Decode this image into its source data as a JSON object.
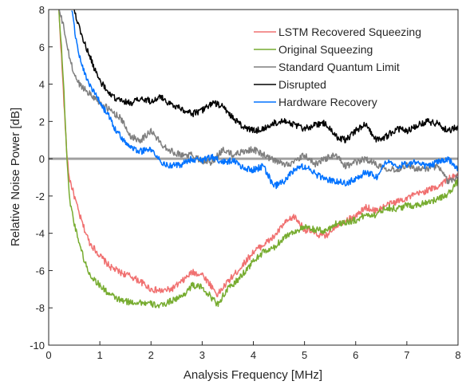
{
  "chart_data": {
    "type": "line",
    "xlabel": "Analysis Frequency [MHz]",
    "ylabel": "Relative Noise Power [dB]",
    "xlim": [
      0,
      8
    ],
    "ylim": [
      -10,
      8
    ],
    "xticks": [
      0,
      1,
      2,
      3,
      4,
      5,
      6,
      7,
      8
    ],
    "yticks": [
      -10,
      -8,
      -6,
      -4,
      -2,
      0,
      2,
      4,
      6,
      8
    ],
    "grid": false,
    "legend_position": "top-right",
    "reference_line": {
      "y": 0,
      "color": "#a0a0a0"
    },
    "series": [
      {
        "name": "LSTM Recovered Squeezing",
        "color": "#f07070",
        "x": [
          0.2,
          0.25,
          0.3,
          0.35,
          0.4,
          0.5,
          0.6,
          0.7,
          0.8,
          1.0,
          1.2,
          1.4,
          1.6,
          1.8,
          2.0,
          2.2,
          2.4,
          2.6,
          2.8,
          3.0,
          3.2,
          3.3,
          3.5,
          3.7,
          4.0,
          4.2,
          4.4,
          4.6,
          4.8,
          5.0,
          5.2,
          5.4,
          5.6,
          5.8,
          6.0,
          6.2,
          6.4,
          6.6,
          6.8,
          7.0,
          7.2,
          7.4,
          7.6,
          7.8,
          8.0
        ],
        "y": [
          8,
          5.5,
          3.0,
          0.5,
          -1.0,
          -2.0,
          -3.0,
          -3.8,
          -4.5,
          -5.2,
          -5.8,
          -6.1,
          -6.3,
          -6.6,
          -7.0,
          -7.1,
          -7.0,
          -6.6,
          -6.1,
          -6.2,
          -6.9,
          -7.3,
          -6.6,
          -6.0,
          -5.0,
          -4.6,
          -4.2,
          -3.5,
          -3.1,
          -3.8,
          -4.0,
          -4.2,
          -3.6,
          -3.3,
          -3.1,
          -2.6,
          -2.8,
          -2.5,
          -2.3,
          -2.1,
          -1.9,
          -1.7,
          -1.5,
          -1.1,
          -0.9
        ]
      },
      {
        "name": "Original Squeezing",
        "color": "#77ac30",
        "x": [
          0.2,
          0.25,
          0.3,
          0.35,
          0.4,
          0.5,
          0.6,
          0.7,
          0.8,
          1.0,
          1.2,
          1.4,
          1.6,
          1.8,
          2.0,
          2.2,
          2.4,
          2.6,
          2.8,
          3.0,
          3.2,
          3.3,
          3.5,
          3.7,
          4.0,
          4.2,
          4.4,
          4.6,
          4.8,
          5.0,
          5.2,
          5.4,
          5.6,
          5.8,
          6.0,
          6.2,
          6.4,
          6.6,
          6.8,
          7.0,
          7.2,
          7.4,
          7.6,
          7.8,
          8.0
        ],
        "y": [
          8,
          6.0,
          3.5,
          0.5,
          -2.0,
          -3.5,
          -4.5,
          -5.5,
          -6.2,
          -6.8,
          -7.3,
          -7.6,
          -7.7,
          -7.7,
          -7.8,
          -7.9,
          -7.6,
          -7.4,
          -6.8,
          -6.9,
          -7.5,
          -7.8,
          -7.0,
          -6.5,
          -5.5,
          -5.0,
          -4.8,
          -4.2,
          -3.9,
          -3.7,
          -3.8,
          -3.9,
          -3.5,
          -3.4,
          -3.3,
          -3.0,
          -3.0,
          -2.6,
          -2.7,
          -2.5,
          -2.5,
          -2.3,
          -2.2,
          -1.9,
          -1.2
        ]
      },
      {
        "name": "Standard Quantum Limit",
        "color": "#7f7f7f",
        "x": [
          0.2,
          0.3,
          0.4,
          0.5,
          0.6,
          0.8,
          1.0,
          1.2,
          1.4,
          1.6,
          1.8,
          2.0,
          2.2,
          2.4,
          2.6,
          2.8,
          3.0,
          3.2,
          3.4,
          3.6,
          3.8,
          4.0,
          4.2,
          4.4,
          4.6,
          4.8,
          5.0,
          5.2,
          5.4,
          5.6,
          5.8,
          6.0,
          6.2,
          6.4,
          6.6,
          6.8,
          7.0,
          7.2,
          7.4,
          7.6,
          7.8,
          8.0
        ],
        "y": [
          8.0,
          7.0,
          5.5,
          4.5,
          4.0,
          3.5,
          3.0,
          2.6,
          2.2,
          1.2,
          1.0,
          1.5,
          0.8,
          0.4,
          0.2,
          0.2,
          -0.1,
          -0.2,
          0.5,
          0.2,
          0.4,
          0.5,
          0.2,
          -0.1,
          -0.3,
          -0.2,
          0.2,
          -0.3,
          0.0,
          0.2,
          -0.4,
          -0.2,
          0.0,
          -0.3,
          -0.5,
          -0.6,
          -0.3,
          -0.6,
          -0.5,
          -0.4,
          -1.2,
          -1.0
        ]
      },
      {
        "name": "Disrupted",
        "color": "#000000",
        "x": [
          0.5,
          0.6,
          0.7,
          0.8,
          0.9,
          1.0,
          1.1,
          1.2,
          1.4,
          1.6,
          1.8,
          2.0,
          2.2,
          2.4,
          2.6,
          2.8,
          3.0,
          3.2,
          3.4,
          3.6,
          3.8,
          4.0,
          4.2,
          4.4,
          4.6,
          4.8,
          5.0,
          5.2,
          5.4,
          5.6,
          5.8,
          6.0,
          6.2,
          6.4,
          6.6,
          6.8,
          7.0,
          7.2,
          7.4,
          7.6,
          7.8,
          8.0
        ],
        "y": [
          8.0,
          7.0,
          6.2,
          5.5,
          4.8,
          4.2,
          3.8,
          3.4,
          3.1,
          3.0,
          3.2,
          3.1,
          3.3,
          2.9,
          2.7,
          2.4,
          2.6,
          3.0,
          2.8,
          2.2,
          1.7,
          1.5,
          1.6,
          1.9,
          2.1,
          1.8,
          1.6,
          1.8,
          1.9,
          1.2,
          1.0,
          1.5,
          1.9,
          1.0,
          1.2,
          1.6,
          1.5,
          1.8,
          2.0,
          1.9,
          1.5,
          1.7
        ]
      },
      {
        "name": "Hardware Recovery",
        "color": "#0072ff",
        "x": [
          0.45,
          0.5,
          0.55,
          0.6,
          0.7,
          0.8,
          0.9,
          1.0,
          1.1,
          1.2,
          1.3,
          1.4,
          1.6,
          1.8,
          2.0,
          2.2,
          2.4,
          2.6,
          2.8,
          3.0,
          3.2,
          3.4,
          3.6,
          3.8,
          4.0,
          4.2,
          4.4,
          4.6,
          4.8,
          5.0,
          5.2,
          5.4,
          5.6,
          5.8,
          6.0,
          6.2,
          6.4,
          6.6,
          6.8,
          7.0,
          7.2,
          7.4,
          7.6,
          7.8,
          8.0
        ],
        "y": [
          8.0,
          7.0,
          6.2,
          5.5,
          4.6,
          4.0,
          3.5,
          3.0,
          2.6,
          2.2,
          1.6,
          1.2,
          0.6,
          0.4,
          0.5,
          -0.2,
          -0.4,
          -0.3,
          0.0,
          -0.1,
          0.1,
          -0.2,
          -0.1,
          -0.5,
          -0.6,
          -0.4,
          -1.5,
          -1.2,
          -0.6,
          -0.4,
          -0.8,
          -1.1,
          -1.2,
          -1.3,
          -1.1,
          -0.7,
          -1.0,
          -0.2,
          -0.4,
          -0.3,
          -0.2,
          -0.4,
          -0.2,
          0.0,
          -0.6
        ]
      }
    ]
  }
}
